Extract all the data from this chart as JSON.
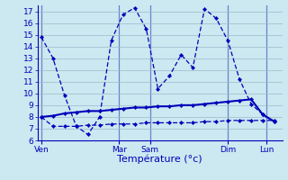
{
  "bg_color": "#cce8f0",
  "line_color": "#0000bb",
  "grid_color": "#99bbcc",
  "xlabel": "Température (°c)",
  "xlabel_fontsize": 8,
  "ylim": [
    6,
    17.5
  ],
  "yticks": [
    6,
    7,
    8,
    9,
    10,
    11,
    12,
    13,
    14,
    15,
    16,
    17
  ],
  "tick_fontsize": 6.5,
  "xtick_labels": [
    "Ven",
    "Mar",
    "Sam",
    "Dim",
    "Lun"
  ],
  "xtick_positions": [
    0,
    40,
    56,
    96,
    116
  ],
  "xlim": [
    -2,
    124
  ],
  "n_x": 21,
  "line1_x": [
    0,
    6,
    12,
    18,
    24,
    30,
    36,
    42,
    48,
    54,
    60,
    66,
    72,
    78,
    84,
    90,
    96,
    102,
    108,
    114,
    120
  ],
  "line1_y": [
    14.8,
    13.0,
    9.8,
    7.2,
    6.5,
    8.0,
    14.5,
    16.7,
    17.3,
    15.5,
    10.4,
    11.5,
    13.3,
    12.2,
    17.2,
    16.4,
    14.5,
    11.2,
    9.1,
    8.2,
    7.6
  ],
  "line2_x": [
    0,
    6,
    12,
    18,
    24,
    30,
    36,
    42,
    48,
    54,
    60,
    66,
    72,
    78,
    84,
    90,
    96,
    102,
    108,
    114,
    120
  ],
  "line2_y": [
    8.0,
    8.1,
    8.3,
    8.4,
    8.5,
    8.5,
    8.6,
    8.7,
    8.8,
    8.8,
    8.9,
    8.9,
    9.0,
    9.0,
    9.1,
    9.2,
    9.3,
    9.4,
    9.5,
    8.2,
    7.6
  ],
  "line3_x": [
    0,
    6,
    12,
    18,
    24,
    30,
    36,
    42,
    48,
    54,
    60,
    66,
    72,
    78,
    84,
    90,
    96,
    102,
    108,
    114,
    120
  ],
  "line3_y": [
    8.0,
    7.2,
    7.2,
    7.2,
    7.3,
    7.3,
    7.4,
    7.4,
    7.4,
    7.5,
    7.5,
    7.5,
    7.5,
    7.5,
    7.6,
    7.6,
    7.7,
    7.7,
    7.7,
    7.7,
    7.7
  ],
  "vsep_x": [
    0,
    40,
    56,
    96,
    116
  ]
}
